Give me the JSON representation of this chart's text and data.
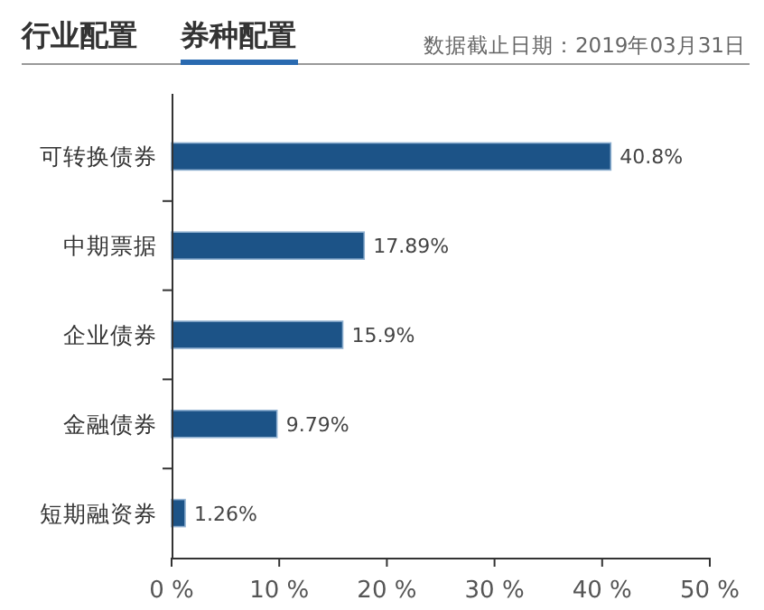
{
  "chart_data": {
    "type": "bar",
    "orientation": "horizontal",
    "title": "券种配置",
    "annotations": [
      "行业配置",
      "数据截止日期：2019年03月31日"
    ],
    "categories": [
      "可转换债券",
      "中期票据",
      "企业债券",
      "金融债券",
      "短期融资券"
    ],
    "values": [
      40.8,
      17.89,
      15.9,
      9.79,
      1.26
    ],
    "value_labels": [
      "40.8%",
      "17.89%",
      "15.9%",
      "9.79%",
      "1.26%"
    ],
    "color": "#1c5387",
    "xlim": [
      0,
      50
    ],
    "xticks": [
      {
        "value": 0,
        "label": "0 %"
      },
      {
        "value": 10,
        "label": "10 %"
      },
      {
        "value": 20,
        "label": "20 %"
      },
      {
        "value": 30,
        "label": "30 %"
      },
      {
        "value": 40,
        "label": "40 %"
      },
      {
        "value": 50,
        "label": "50 %"
      }
    ],
    "grid": false
  }
}
